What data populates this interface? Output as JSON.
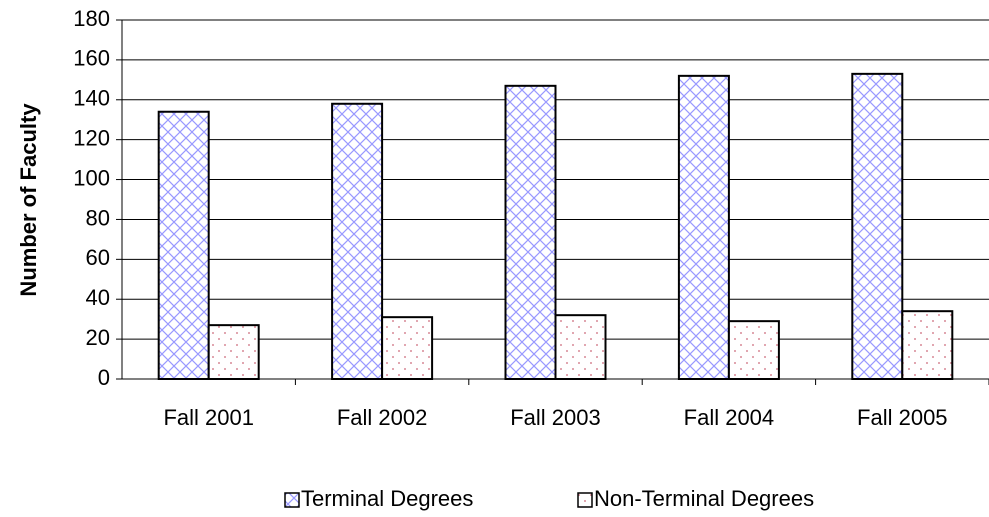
{
  "chart_data": {
    "type": "bar",
    "y_label": "Number of Faculty",
    "categories": [
      "Fall 2001",
      "Fall 2002",
      "Fall 2003",
      "Fall 2004",
      "Fall 2005"
    ],
    "series": [
      {
        "name": "Terminal Degrees",
        "color": "#9999ff",
        "pattern": "crosshatch",
        "values": [
          134,
          138,
          147,
          152,
          153
        ]
      },
      {
        "name": "Non-Terminal Degrees",
        "color": "#cc6677",
        "pattern": "dots",
        "values": [
          27,
          31,
          32,
          29,
          34
        ]
      }
    ],
    "ylim": [
      0,
      180
    ],
    "yticks": [
      0,
      20,
      40,
      60,
      80,
      100,
      120,
      140,
      160,
      180
    ],
    "grid": true,
    "legend": "bottom"
  }
}
